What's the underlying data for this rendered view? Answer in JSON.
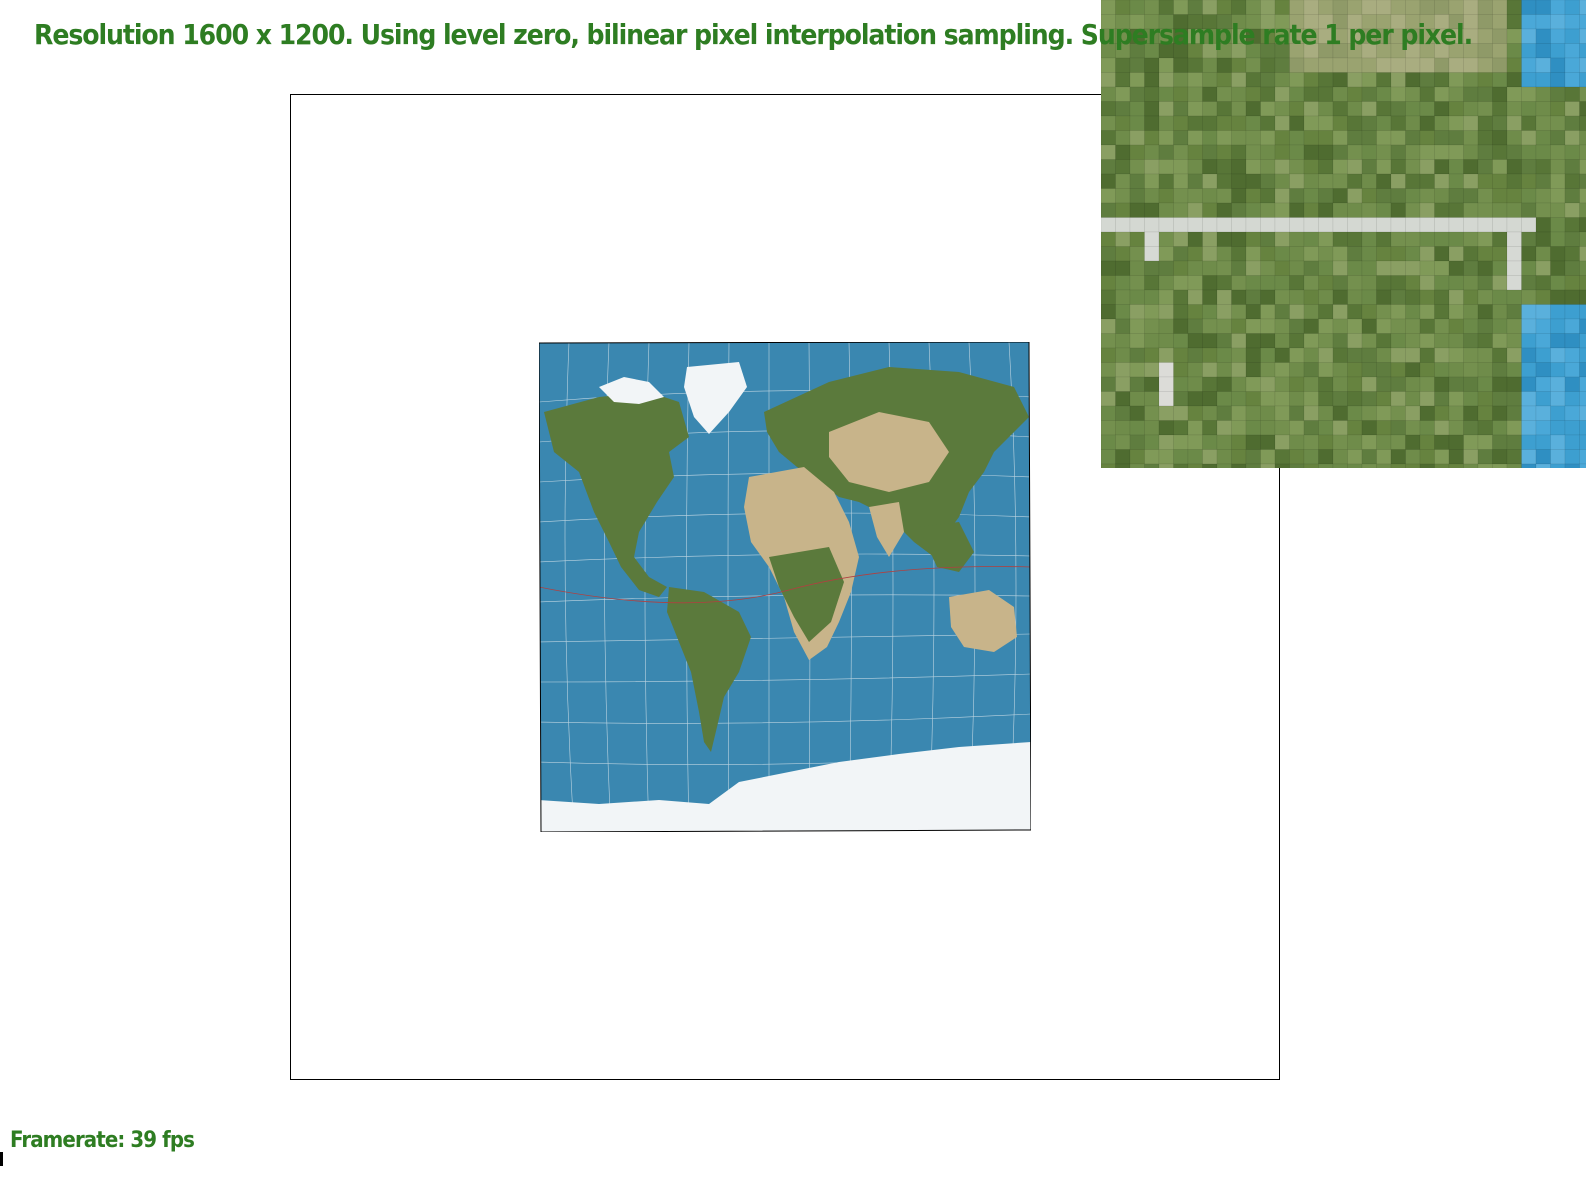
{
  "status": {
    "top_text": "Resolution 1600 x 1200. Using level zero, bilinear pixel interpolation sampling. Supersample rate 1 per pixel.",
    "bottom_text": "Framerate: 39 fps"
  },
  "colors": {
    "status_text": "#2e7d22",
    "ocean": "#3a87b0",
    "ice": "#f2f5f7",
    "land_green": "#5b7a3c",
    "land_desert": "#c8b48a",
    "grid_line": "#e8eef2",
    "zoom_tile_base": "#6b8a48"
  },
  "icons": {
    "world_map": "world-map-texture-icon",
    "zoom_grid": "pixel-zoom-grid-icon"
  }
}
